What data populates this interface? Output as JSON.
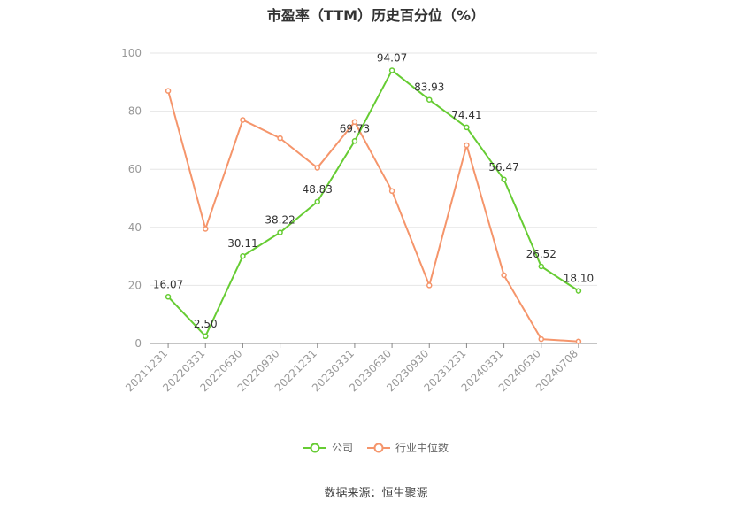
{
  "chart_data": {
    "type": "line",
    "title": "市盈率（TTM）历史百分位（%）",
    "categories": [
      "20211231",
      "20220331",
      "20220630",
      "20220930",
      "20221231",
      "20230331",
      "20230630",
      "20230930",
      "20231231",
      "20240331",
      "20240630",
      "20240708"
    ],
    "series": [
      {
        "name": "公司",
        "color": "#66cc33",
        "values": [
          16.07,
          2.5,
          30.11,
          38.22,
          48.83,
          69.73,
          94.07,
          83.93,
          74.41,
          56.47,
          26.52,
          18.1
        ],
        "labels": [
          "16.07",
          "2.50",
          "30.11",
          "38.22",
          "48.83",
          "69.73",
          "94.07",
          "83.93",
          "74.41",
          "56.47",
          "26.52",
          "18.10"
        ]
      },
      {
        "name": "行业中位数",
        "color": "#f5956b",
        "values": [
          87,
          39.5,
          77,
          70.7,
          60.5,
          76.3,
          52.5,
          20,
          68.3,
          23.5,
          1.5,
          0.7
        ]
      }
    ],
    "ylim": [
      0,
      100
    ],
    "yticks": [
      "0",
      "20",
      "40",
      "60",
      "80",
      "100"
    ],
    "grid": true,
    "legend_position": "bottom"
  },
  "source": "数据来源：恒生聚源"
}
